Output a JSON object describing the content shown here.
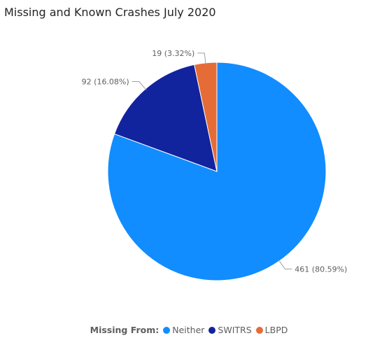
{
  "chart_data": {
    "type": "pie",
    "title": "Missing and Known Crashes July 2020",
    "legend_title": "Missing From:",
    "legend_position": "bottom-center",
    "slices": [
      {
        "name": "Neither",
        "value": 461,
        "percent_label": "461 (80.59%)",
        "color": "#118dff"
      },
      {
        "name": "SWITRS",
        "value": 92,
        "percent_label": "92 (16.08%)",
        "color": "#12239e"
      },
      {
        "name": "LBPD",
        "value": 19,
        "percent_label": "19 (3.32%)",
        "color": "#e66c37"
      }
    ]
  }
}
